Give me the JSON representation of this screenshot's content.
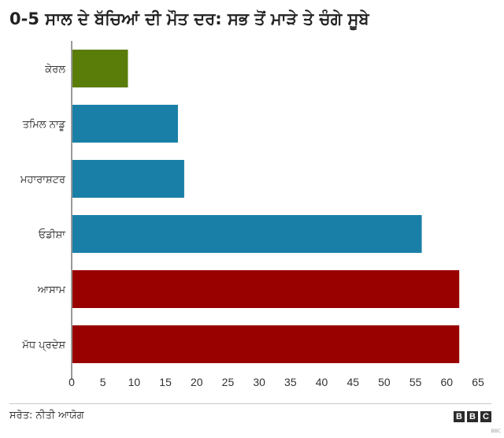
{
  "title": "0-5 ਸਾਲ ਦੇ ਬੱਚਿਆਂ ਦੀ ਮੌਤ ਦਰ: ਸਭ ਤੋਂ ਮਾੜੇ ਤੇ ਚੰਗੇ ਸੂਬੇ",
  "source": "ਸਰੋਤ: ਨੀਤੀ ਆਯੋਗ",
  "brand": {
    "letters": [
      "B",
      "B",
      "C"
    ],
    "tag": "BBC"
  },
  "chart_data": {
    "type": "bar",
    "orientation": "horizontal",
    "categories": [
      "ਕੇਰਲ",
      "ਤਮਿਲ ਨਾਡੂ",
      "ਮਹਾਰਾਸ਼ਟਰ",
      "ਓਡੀਸ਼ਾ",
      "ਆਸਾਮ",
      "ਮੱਧ ਪ੍ਰਦੇਸ਼"
    ],
    "values": [
      9,
      17,
      18,
      56,
      62,
      62
    ],
    "colors": [
      "#5a7d0a",
      "#1a7fa6",
      "#1a7fa6",
      "#1a7fa6",
      "#990000",
      "#990000"
    ],
    "xlim": [
      0,
      65
    ],
    "xticks": [
      0,
      5,
      10,
      15,
      20,
      25,
      30,
      35,
      40,
      45,
      50,
      55,
      60,
      65
    ],
    "grid": false,
    "legend": "none"
  }
}
